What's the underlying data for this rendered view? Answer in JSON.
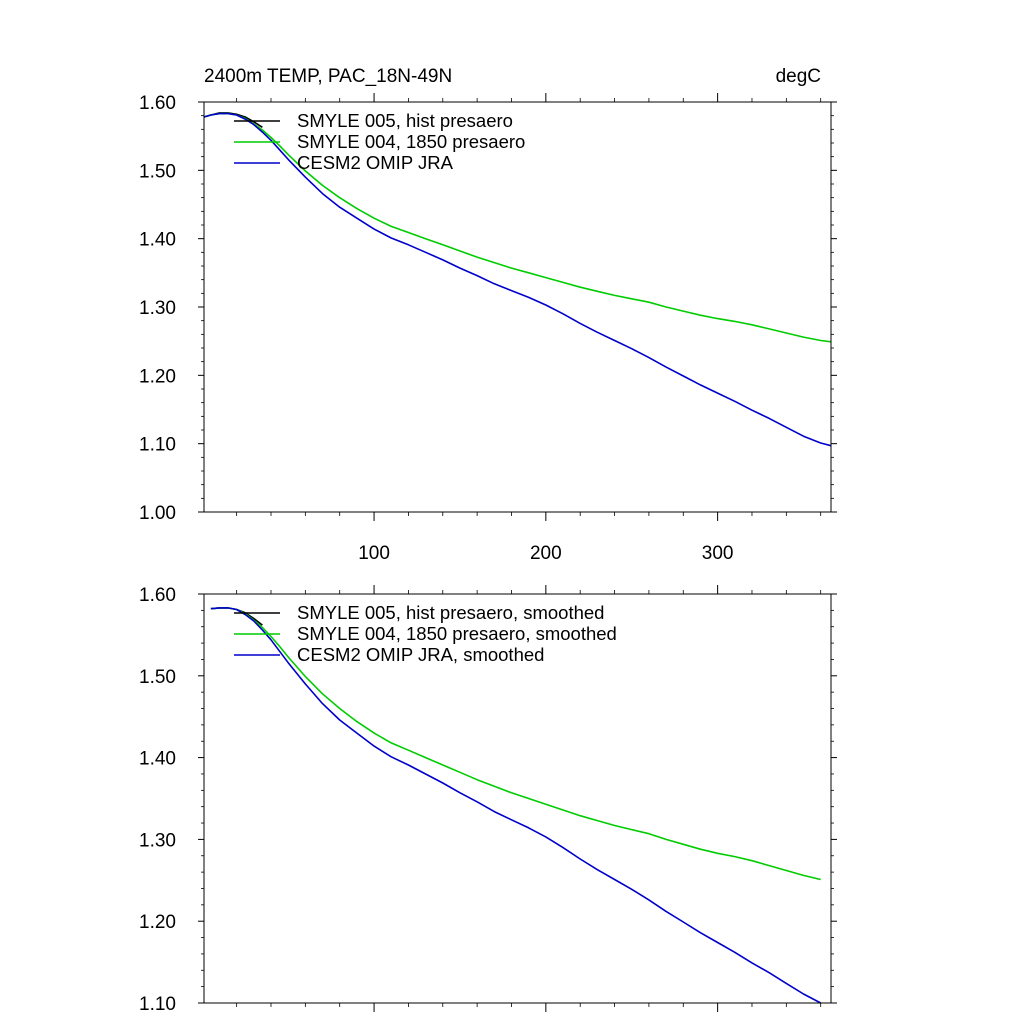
{
  "chart_data": [
    {
      "type": "line",
      "title": "2400m TEMP, PAC_18N-49N",
      "units": "degC",
      "xlim": [
        1,
        366
      ],
      "ylim": [
        1.0,
        1.6
      ],
      "xticks": [
        100,
        200,
        300
      ],
      "xtick_labels": [
        "100",
        "200",
        "300"
      ],
      "yticks": [
        1.0,
        1.1,
        1.2,
        1.3,
        1.4,
        1.5,
        1.6
      ],
      "ytick_labels": [
        "1.00",
        "1.10",
        "1.20",
        "1.30",
        "1.40",
        "1.50",
        "1.60"
      ],
      "grid": false,
      "legend_position": "top-left",
      "series": [
        {
          "name": "SMYLE 005, hist presaero",
          "color": "#000000",
          "x": [
            1,
            5,
            10,
            15,
            20,
            25,
            30,
            35
          ],
          "y": [
            1.578,
            1.581,
            1.584,
            1.584,
            1.582,
            1.578,
            1.571,
            1.563
          ]
        },
        {
          "name": "SMYLE 004, 1850 presaero",
          "color": "#00cc00",
          "x": [
            1,
            5,
            10,
            15,
            20,
            25,
            30,
            35,
            40,
            45,
            50,
            60,
            70,
            80,
            90,
            100,
            110,
            120,
            130,
            140,
            150,
            160,
            170,
            180,
            190,
            200,
            210,
            220,
            230,
            240,
            250,
            260,
            270,
            280,
            290,
            300,
            310,
            320,
            330,
            340,
            350,
            360,
            366
          ],
          "y": [
            1.578,
            1.581,
            1.583,
            1.583,
            1.581,
            1.576,
            1.568,
            1.559,
            1.548,
            1.536,
            1.523,
            1.499,
            1.478,
            1.46,
            1.444,
            1.43,
            1.418,
            1.409,
            1.4,
            1.391,
            1.382,
            1.373,
            1.365,
            1.357,
            1.35,
            1.343,
            1.336,
            1.329,
            1.323,
            1.317,
            1.312,
            1.307,
            1.3,
            1.294,
            1.288,
            1.283,
            1.279,
            1.274,
            1.268,
            1.262,
            1.256,
            1.251,
            1.249
          ]
        },
        {
          "name": "CESM2 OMIP JRA",
          "color": "#0000cc",
          "x": [
            1,
            5,
            10,
            15,
            20,
            25,
            30,
            35,
            40,
            45,
            50,
            60,
            70,
            80,
            90,
            100,
            110,
            120,
            130,
            140,
            150,
            160,
            170,
            180,
            190,
            200,
            210,
            220,
            230,
            240,
            250,
            260,
            270,
            280,
            290,
            300,
            310,
            320,
            330,
            340,
            350,
            360,
            366
          ],
          "y": [
            1.578,
            1.581,
            1.583,
            1.583,
            1.581,
            1.575,
            1.567,
            1.556,
            1.544,
            1.53,
            1.516,
            1.49,
            1.466,
            1.446,
            1.43,
            1.414,
            1.401,
            1.391,
            1.38,
            1.369,
            1.357,
            1.346,
            1.334,
            1.324,
            1.314,
            1.303,
            1.29,
            1.276,
            1.263,
            1.251,
            1.239,
            1.226,
            1.212,
            1.199,
            1.186,
            1.174,
            1.162,
            1.149,
            1.137,
            1.124,
            1.111,
            1.101,
            1.097
          ]
        }
      ]
    },
    {
      "type": "line",
      "title": "",
      "xlim": [
        1,
        366
      ],
      "ylim": [
        1.1,
        1.6
      ],
      "xticks": [
        100,
        200,
        300
      ],
      "xtick_labels": [],
      "yticks": [
        1.1,
        1.2,
        1.3,
        1.4,
        1.5,
        1.6
      ],
      "ytick_labels": [
        "1.10",
        "1.20",
        "1.30",
        "1.40",
        "1.50",
        "1.60"
      ],
      "grid": false,
      "legend_position": "top-left",
      "series": [
        {
          "name": "SMYLE 005, hist presaero, smoothed",
          "color": "#000000",
          "x": [
            5,
            10,
            15,
            20,
            25,
            30,
            35
          ],
          "y": [
            1.582,
            1.583,
            1.583,
            1.581,
            1.577,
            1.57,
            1.562
          ]
        },
        {
          "name": "SMYLE 004, 1850 presaero, smoothed",
          "color": "#00cc00",
          "x": [
            5,
            10,
            15,
            20,
            25,
            30,
            35,
            40,
            45,
            50,
            60,
            70,
            80,
            90,
            100,
            110,
            120,
            130,
            140,
            150,
            160,
            170,
            180,
            190,
            200,
            210,
            220,
            230,
            240,
            250,
            260,
            270,
            280,
            290,
            300,
            310,
            320,
            330,
            340,
            350,
            360
          ],
          "y": [
            1.582,
            1.583,
            1.583,
            1.581,
            1.576,
            1.568,
            1.559,
            1.548,
            1.536,
            1.523,
            1.499,
            1.478,
            1.46,
            1.444,
            1.43,
            1.418,
            1.409,
            1.4,
            1.391,
            1.382,
            1.373,
            1.365,
            1.357,
            1.35,
            1.343,
            1.336,
            1.329,
            1.323,
            1.317,
            1.312,
            1.307,
            1.3,
            1.294,
            1.288,
            1.283,
            1.279,
            1.274,
            1.268,
            1.262,
            1.256,
            1.251
          ]
        },
        {
          "name": "CESM2 OMIP JRA, smoothed",
          "color": "#0000cc",
          "x": [
            5,
            10,
            15,
            20,
            25,
            30,
            35,
            40,
            45,
            50,
            60,
            70,
            80,
            90,
            100,
            110,
            120,
            130,
            140,
            150,
            160,
            170,
            180,
            190,
            200,
            210,
            220,
            230,
            240,
            250,
            260,
            270,
            280,
            290,
            300,
            310,
            320,
            330,
            340,
            350,
            360
          ],
          "y": [
            1.582,
            1.583,
            1.583,
            1.581,
            1.575,
            1.567,
            1.556,
            1.544,
            1.53,
            1.516,
            1.49,
            1.466,
            1.446,
            1.43,
            1.414,
            1.401,
            1.391,
            1.38,
            1.369,
            1.357,
            1.346,
            1.334,
            1.324,
            1.314,
            1.303,
            1.29,
            1.276,
            1.263,
            1.251,
            1.239,
            1.226,
            1.212,
            1.199,
            1.186,
            1.174,
            1.162,
            1.149,
            1.137,
            1.124,
            1.111,
            1.1
          ]
        }
      ]
    }
  ]
}
